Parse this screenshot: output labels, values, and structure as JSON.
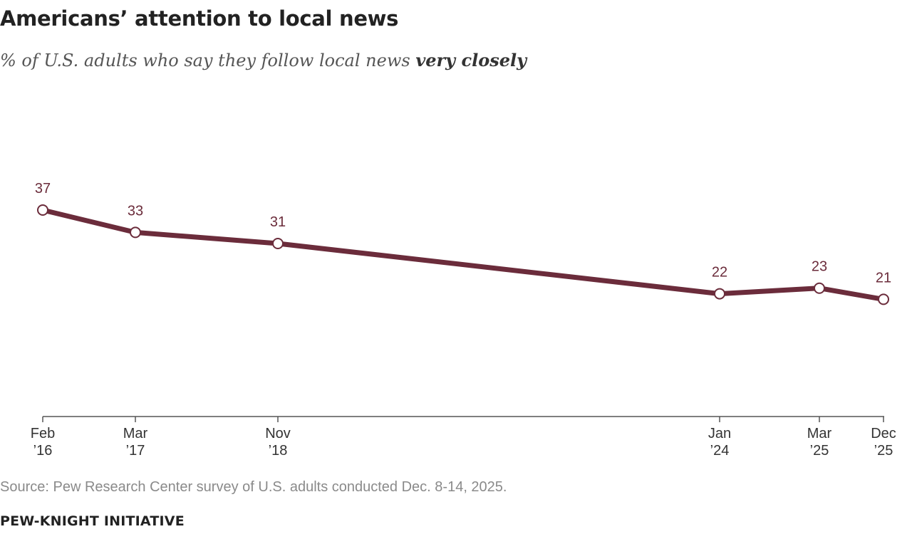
{
  "header": {
    "title": "Americans’ attention to local news",
    "subtitle_prefix": "% of U.S. adults who say they follow local news ",
    "subtitle_emphasis": "very closely"
  },
  "footer": {
    "source": "Source: Pew Research Center survey of U.S. adults conducted Dec. 8-14, 2025.",
    "brand": "PEW-KNIGHT INITIATIVE"
  },
  "colors": {
    "line": "#6b2c3b",
    "label": "#6b2c3b",
    "axis": "#555555",
    "marker_fill": "#ffffff"
  },
  "chart_data": {
    "type": "line",
    "title": "Americans’ attention to local news",
    "subtitle": "% of U.S. adults who say they follow local news very closely",
    "x": [
      "2016-02",
      "2017-03",
      "2018-11",
      "2024-01",
      "2025-03",
      "2025-12"
    ],
    "tick_labels": [
      [
        "Feb",
        "’16"
      ],
      [
        "Mar",
        "’17"
      ],
      [
        "Nov",
        "’18"
      ],
      [
        "Jan",
        "’24"
      ],
      [
        "Mar",
        "’25"
      ],
      [
        "Dec",
        "’25"
      ]
    ],
    "series": [
      {
        "values": [
          37,
          33,
          31,
          22,
          23,
          21
        ]
      }
    ],
    "data_labels": [
      "37",
      "33",
      "31",
      "22",
      "23",
      "21"
    ],
    "ylim": [
      0,
      50
    ],
    "xlabel": "",
    "ylabel": "",
    "grid": false,
    "legend": "none",
    "x_axis": "time"
  }
}
